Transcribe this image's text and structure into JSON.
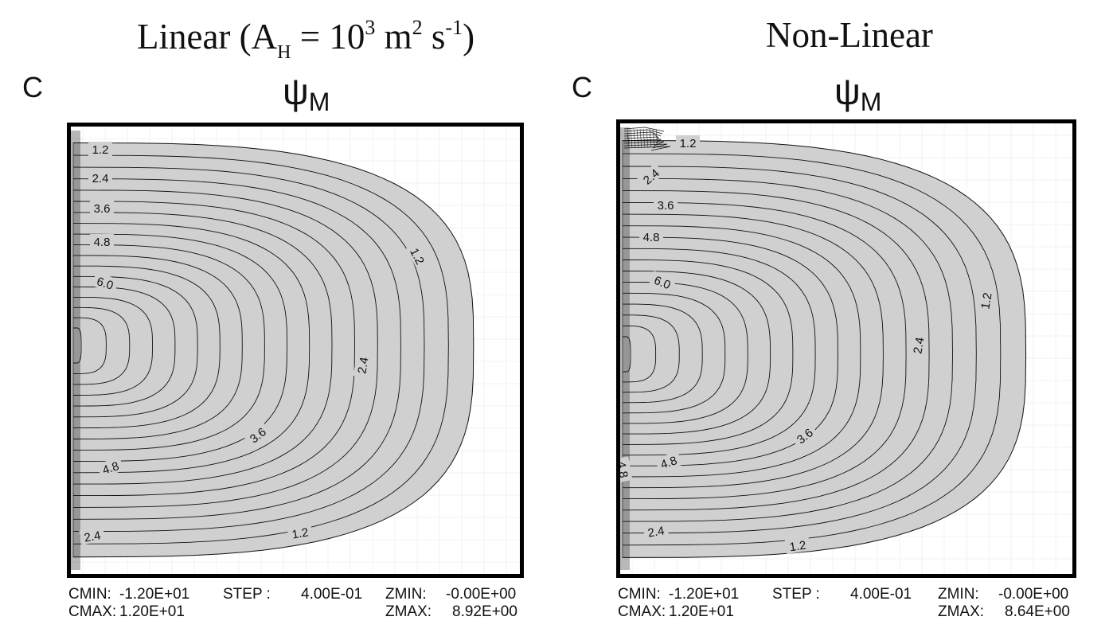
{
  "panels": [
    {
      "title_parts": [
        "Linear (A",
        "H",
        " = 10",
        "3",
        " m",
        "2",
        " s",
        "-1",
        ")"
      ],
      "letter": "C",
      "field_symbol": "ψ",
      "field_subscript": "M",
      "contour_labels": [
        "1.2",
        "2.4",
        "3.6",
        "4.8",
        "6.0",
        "1.2",
        "2.4",
        "3.6",
        "4.8",
        "2.4",
        "1.2"
      ],
      "stats": {
        "cmin_label": "CMIN:",
        "cmin_value": "-1.20E+01",
        "cmax_label": "CMAX:",
        "cmax_value": "1.20E+01",
        "step_label": "STEP :",
        "step_value": "4.00E-01",
        "zmin_label": "ZMIN:",
        "zmin_value": "-0.00E+00",
        "zmax_label": "ZMAX:",
        "zmax_value": "8.92E+00"
      }
    },
    {
      "title_parts": [
        "Non-Linear"
      ],
      "letter": "C",
      "field_symbol": "ψ",
      "field_subscript": "M",
      "contour_labels": [
        "1.2",
        "2.4",
        "3.6",
        "4.8",
        "6.0",
        "1.2",
        "2.4",
        "3.6",
        "4.8",
        "2.4",
        "1.2",
        "4.8"
      ],
      "stats": {
        "cmin_label": "CMIN:",
        "cmin_value": "-1.20E+01",
        "cmax_label": "CMAX:",
        "cmax_value": "1.20E+01",
        "step_label": "STEP :",
        "step_value": "4.00E-01",
        "zmin_label": "ZMIN:",
        "zmin_value": "-0.00E+00",
        "zmax_label": "ZMAX:",
        "zmax_value": "8.64E+00"
      }
    }
  ],
  "colors": {
    "fill": "#d0d0d0",
    "line": "#111111",
    "frame": "#000000",
    "grid": "#e6e6e6"
  }
}
